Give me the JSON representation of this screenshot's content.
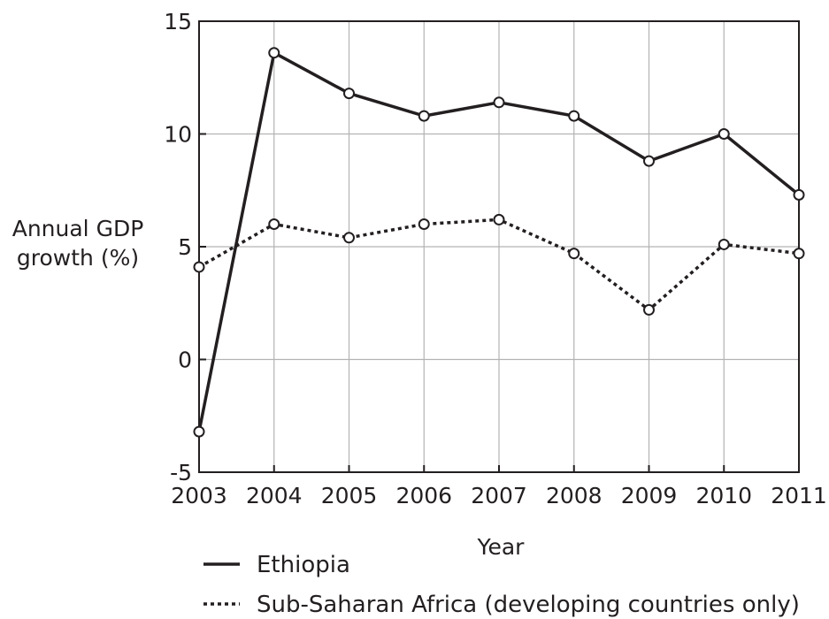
{
  "chart_data": {
    "type": "line",
    "title": "",
    "xlabel": "Year",
    "ylabel": "Annual GDP growth (%)",
    "ylabel_lines": [
      "Annual GDP",
      "growth (%)"
    ],
    "x": [
      2003,
      2004,
      2005,
      2006,
      2007,
      2008,
      2009,
      2010,
      2011
    ],
    "x_tick_labels": [
      "2003",
      "2004",
      "2005",
      "2006",
      "2007",
      "2008",
      "2009",
      "2010",
      "2011"
    ],
    "ylim": [
      -5,
      15
    ],
    "y_ticks": [
      -5,
      0,
      5,
      10,
      15
    ],
    "y_tick_labels": [
      "-5",
      "0",
      "5",
      "10",
      "15"
    ],
    "grid": true,
    "legend_position": "bottom",
    "series": [
      {
        "name": "Ethiopia",
        "style": "solid",
        "values": [
          -3.2,
          13.6,
          11.8,
          10.8,
          11.4,
          10.8,
          8.8,
          10.0,
          7.3
        ]
      },
      {
        "name": "Sub-Saharan Africa (developing countries only)",
        "style": "dotted",
        "values": [
          4.1,
          6.0,
          5.4,
          6.0,
          6.2,
          4.7,
          2.2,
          5.1,
          4.7
        ]
      }
    ],
    "colors": {
      "line": "#231f20",
      "grid": "#b3b3b3",
      "marker_fill": "#ffffff"
    }
  }
}
